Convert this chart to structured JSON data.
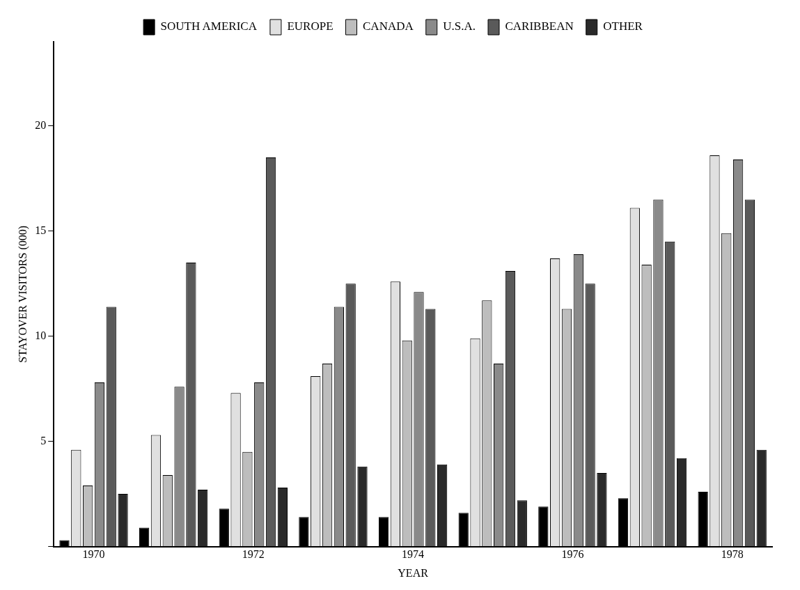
{
  "chart_data": {
    "type": "bar",
    "xlabel": "YEAR",
    "ylabel": "STAYOVER VISITORS (000)",
    "categories": [
      "1970",
      null,
      "1972",
      null,
      "1974",
      null,
      "1976",
      null,
      "1978"
    ],
    "series": [
      {
        "name": "SOUTH AMERICA",
        "color": "#000000",
        "values": [
          0.3,
          0.9,
          1.8,
          1.4,
          1.4,
          1.6,
          1.9,
          2.3,
          2.6
        ]
      },
      {
        "name": "EUROPE",
        "color": "#e0e0e0",
        "values": [
          4.6,
          5.3,
          7.3,
          8.1,
          12.6,
          9.9,
          13.7,
          16.1,
          18.6
        ]
      },
      {
        "name": "CANADA",
        "color": "#bdbdbd",
        "values": [
          2.9,
          3.4,
          4.5,
          8.7,
          9.8,
          11.7,
          11.3,
          13.4,
          14.9
        ]
      },
      {
        "name": "U.S.A.",
        "color": "#8a8a8a",
        "values": [
          7.8,
          7.6,
          7.8,
          11.4,
          12.1,
          8.7,
          13.9,
          16.5,
          18.4
        ]
      },
      {
        "name": "CARIBBEAN",
        "color": "#5a5a5a",
        "values": [
          11.4,
          13.5,
          18.5,
          12.5,
          11.3,
          13.1,
          12.5,
          14.5,
          16.5
        ]
      },
      {
        "name": "OTHER",
        "color": "#2a2a2a",
        "values": [
          2.5,
          2.7,
          2.8,
          3.8,
          3.9,
          2.2,
          3.5,
          4.2,
          4.6
        ]
      }
    ],
    "ylim": [
      0,
      24
    ],
    "yticks": [
      {
        "value": 0,
        "label": null
      },
      5,
      10,
      15,
      20
    ],
    "grid": false,
    "legend": "top"
  }
}
